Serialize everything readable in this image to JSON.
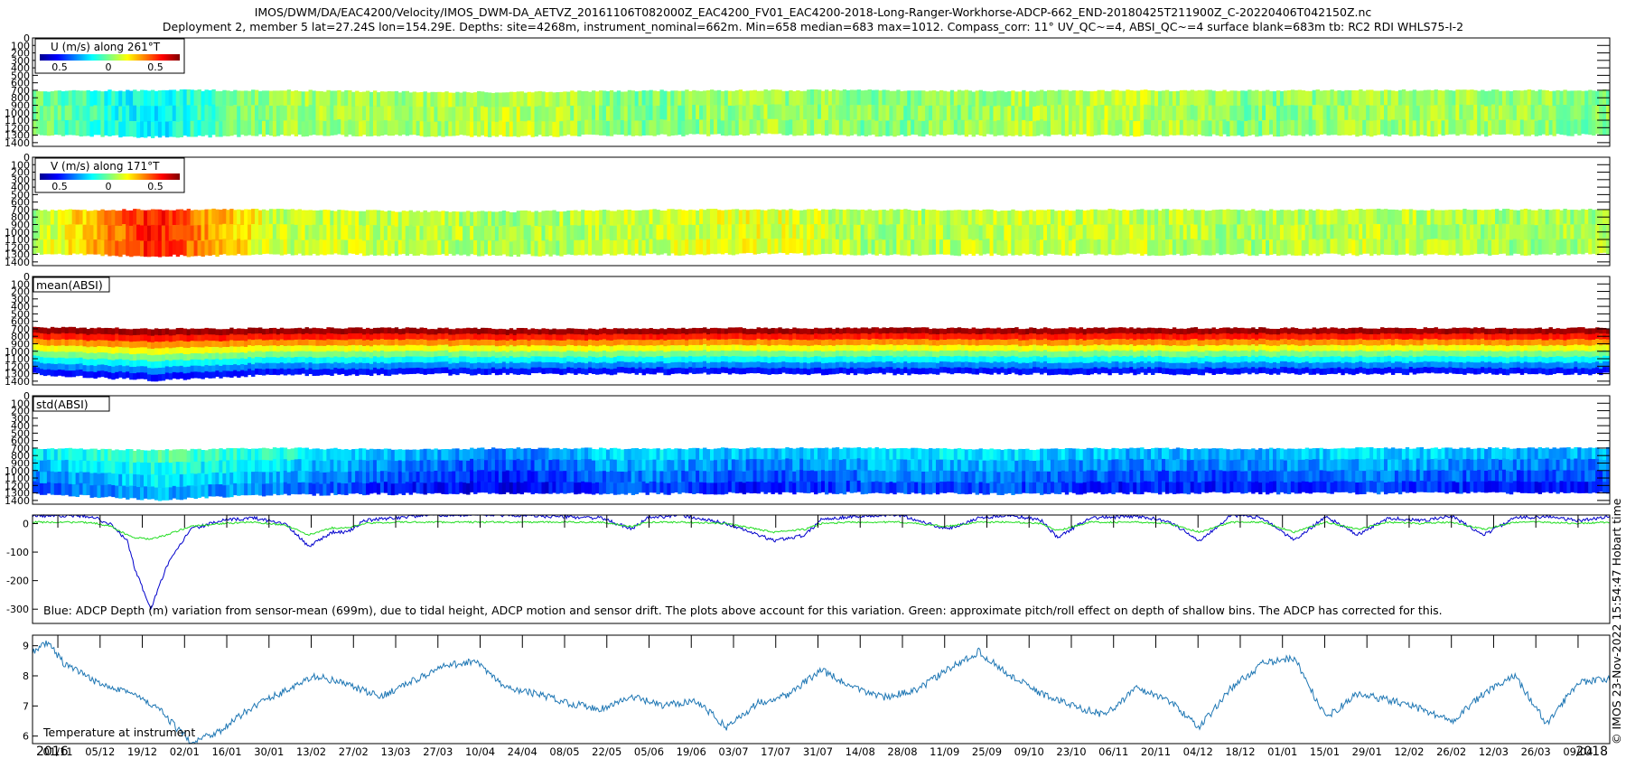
{
  "header": {
    "title": "IMOS/DWM/DA/EAC4200/Velocity/IMOS_DWM-DA_AETVZ_20161106T082000Z_EAC4200_FV01_EAC4200-2018-Long-Ranger-Workhorse-ADCP-662_END-20180425T211900Z_C-20220406T042150Z.nc",
    "subtitle": "Deployment 2, member 5 lat=27.24S lon=154.29E. Depths: site=4268m, instrument_nominal=662m. Min=658 median=683 max=1012. Compass_corr: 11° UV_QC~=4, ABSI_QC~=4 surface blank=683m tb: RC2 RDI WHLS75-I-2"
  },
  "copyright": "© IMOS 23-Nov-2022 15:54:47 Hobart time",
  "colors": {
    "depth_series": "#0000cc",
    "pitch_roll_series": "#22dd22",
    "temperature_series": "#1f77b4"
  },
  "chart_data": [
    {
      "type": "heatmap",
      "panel": "u_velocity",
      "legend_label": "U (m/s) along 261°T",
      "colorbar_ticks": [
        "0.5",
        "0",
        "0.5"
      ],
      "y_ticks": [
        "0",
        "100",
        "200",
        "300",
        "400",
        "500",
        "600",
        "700",
        "800",
        "900",
        "1000",
        "1100",
        "1200",
        "1300",
        "1400"
      ],
      "ylim": [
        0,
        1450
      ],
      "y_reversed": true,
      "data_top_depth": [
        710,
        700,
        700,
        720,
        725,
        705,
        700,
        700,
        710,
        700,
        705,
        700,
        700,
        700
      ],
      "data_bottom_depth": [
        1290,
        1320,
        1300,
        1300,
        1310,
        1300,
        1290,
        1300,
        1300,
        1300,
        1300,
        1300,
        1300,
        1290
      ],
      "colormap": "jet",
      "value_range": [
        -0.7,
        0.7
      ],
      "mean_value_by_time": [
        0.0,
        -0.2,
        0.05,
        0.05,
        0.1,
        0.0,
        0.05,
        0.0,
        0.05,
        0.1,
        0.0,
        0.05,
        0.05,
        0.0
      ]
    },
    {
      "type": "heatmap",
      "panel": "v_velocity",
      "legend_label": "V (m/s) along 171°T",
      "colorbar_ticks": [
        "0.5",
        "0",
        "0.5"
      ],
      "y_ticks": [
        "0",
        "100",
        "200",
        "300",
        "400",
        "500",
        "600",
        "700",
        "800",
        "900",
        "1000",
        "1100",
        "1200",
        "1300",
        "1400"
      ],
      "ylim": [
        0,
        1450
      ],
      "y_reversed": true,
      "data_top_depth": [
        710,
        700,
        700,
        720,
        725,
        705,
        700,
        700,
        710,
        700,
        705,
        700,
        700,
        700
      ],
      "data_bottom_depth": [
        1290,
        1320,
        1300,
        1300,
        1310,
        1300,
        1290,
        1300,
        1300,
        1300,
        1300,
        1300,
        1300,
        1290
      ],
      "colormap": "jet",
      "value_range": [
        -0.7,
        0.7
      ],
      "mean_value_by_time": [
        0.05,
        0.5,
        0.1,
        0.1,
        0.05,
        0.1,
        0.15,
        0.05,
        0.1,
        0.1,
        0.05,
        0.1,
        0.05,
        0.05
      ]
    },
    {
      "type": "heatmap",
      "panel": "mean_absi",
      "legend_label": "mean(ABSI)",
      "y_ticks": [
        "0",
        "100",
        "200",
        "300",
        "400",
        "500",
        "600",
        "700",
        "800",
        "900",
        "1000",
        "1100",
        "1200",
        "1300",
        "1400"
      ],
      "ylim": [
        0,
        1450
      ],
      "y_reversed": true,
      "data_top_depth": [
        680,
        700,
        690,
        690,
        700,
        695,
        690,
        690,
        690,
        690,
        690,
        690,
        690,
        690
      ],
      "data_bottom_depth": [
        1300,
        1390,
        1310,
        1310,
        1300,
        1300,
        1300,
        1300,
        1300,
        1300,
        1300,
        1300,
        1300,
        1300
      ],
      "colormap": "jet",
      "profile_note": "high at top of profile decreasing with depth"
    },
    {
      "type": "heatmap",
      "panel": "std_absi",
      "legend_label": "std(ABSI)",
      "y_ticks": [
        "0",
        "100",
        "200",
        "300",
        "400",
        "500",
        "600",
        "700",
        "800",
        "900",
        "1000",
        "1100",
        "1200",
        "1300",
        "1400"
      ],
      "ylim": [
        0,
        1450
      ],
      "y_reversed": true,
      "data_top_depth": [
        700,
        730,
        700,
        720,
        700,
        710,
        700,
        700,
        720,
        700,
        710,
        700,
        700,
        700
      ],
      "data_bottom_depth": [
        1300,
        1390,
        1320,
        1310,
        1300,
        1310,
        1300,
        1300,
        1310,
        1300,
        1300,
        1300,
        1300,
        1300
      ],
      "colormap": "jet",
      "mean_level_by_time": [
        0.35,
        0.45,
        0.4,
        0.3,
        0.25,
        0.35,
        0.3,
        0.35,
        0.35,
        0.3,
        0.3,
        0.35,
        0.3,
        0.3
      ]
    },
    {
      "type": "line",
      "panel": "depth_variation",
      "annotation": "Blue: ADCP Depth (m) variation from sensor-mean (699m), due to tidal height, ADCP motion and sensor drift. The plots above account for this variation. Green: approximate pitch/roll effect on depth of shallow bins. The ADCP has corrected for this.",
      "y_ticks": [
        "0",
        "-100",
        "-200",
        "-300"
      ],
      "y_tick_values": [
        0,
        -100,
        -200,
        -300
      ],
      "ylim": [
        -350,
        30
      ],
      "x": [
        0,
        0.02,
        0.038,
        0.05,
        0.06,
        0.065,
        0.075,
        0.085,
        0.1,
        0.12,
        0.14,
        0.16,
        0.175,
        0.19,
        0.2,
        0.21,
        0.23,
        0.25,
        0.27,
        0.3,
        0.33,
        0.36,
        0.38,
        0.39,
        0.41,
        0.44,
        0.47,
        0.49,
        0.5,
        0.52,
        0.55,
        0.58,
        0.6,
        0.62,
        0.64,
        0.65,
        0.67,
        0.7,
        0.72,
        0.74,
        0.76,
        0.78,
        0.8,
        0.82,
        0.84,
        0.86,
        0.88,
        0.9,
        0.92,
        0.94,
        0.96,
        0.98,
        1.0
      ],
      "series": [
        {
          "values": [
            28,
            28,
            25,
            -5,
            -60,
            -160,
            -300,
            -150,
            -20,
            10,
            20,
            0,
            -80,
            -30,
            -30,
            10,
            20,
            30,
            30,
            30,
            25,
            20,
            -20,
            20,
            30,
            0,
            -60,
            -40,
            15,
            25,
            30,
            -20,
            20,
            30,
            10,
            -50,
            20,
            25,
            10,
            -60,
            30,
            20,
            -60,
            25,
            -40,
            20,
            10,
            25,
            -40,
            20,
            25,
            10,
            25
          ]
        },
        {
          "values": [
            5,
            5,
            3,
            -10,
            -40,
            -50,
            -55,
            -40,
            -10,
            0,
            5,
            -5,
            -40,
            -15,
            -15,
            0,
            5,
            5,
            5,
            5,
            5,
            5,
            -10,
            5,
            5,
            0,
            -30,
            -20,
            0,
            5,
            5,
            -10,
            5,
            5,
            0,
            -25,
            5,
            5,
            0,
            -30,
            5,
            5,
            -30,
            5,
            -20,
            5,
            0,
            5,
            -20,
            5,
            5,
            0,
            5
          ]
        }
      ]
    },
    {
      "type": "line",
      "panel": "temperature",
      "annotation": "Temperature at instrument",
      "y_ticks": [
        "9",
        "8",
        "7",
        "6"
      ],
      "y_tick_values": [
        9,
        8,
        7,
        6
      ],
      "ylim": [
        5.75,
        9.35
      ],
      "x": [
        0,
        0.01,
        0.02,
        0.04,
        0.06,
        0.08,
        0.1,
        0.12,
        0.14,
        0.16,
        0.18,
        0.2,
        0.22,
        0.24,
        0.26,
        0.28,
        0.3,
        0.32,
        0.34,
        0.36,
        0.38,
        0.4,
        0.42,
        0.44,
        0.46,
        0.48,
        0.5,
        0.52,
        0.54,
        0.56,
        0.58,
        0.6,
        0.62,
        0.64,
        0.66,
        0.68,
        0.7,
        0.72,
        0.74,
        0.76,
        0.78,
        0.8,
        0.82,
        0.84,
        0.86,
        0.88,
        0.9,
        0.92,
        0.94,
        0.96,
        0.98,
        1.0
      ],
      "series": [
        {
          "values": [
            8.8,
            9.1,
            8.4,
            7.8,
            7.5,
            6.9,
            5.8,
            6.2,
            7.0,
            7.5,
            8.0,
            7.7,
            7.3,
            7.8,
            8.3,
            8.5,
            7.6,
            7.4,
            7.1,
            6.9,
            7.3,
            7.0,
            7.2,
            6.3,
            7.1,
            7.4,
            8.2,
            7.6,
            7.3,
            7.5,
            8.2,
            8.8,
            8.0,
            7.4,
            7.0,
            6.7,
            7.6,
            7.2,
            6.3,
            7.6,
            8.4,
            8.6,
            6.6,
            7.4,
            7.2,
            6.9,
            6.5,
            7.4,
            8.0,
            6.4,
            7.8,
            7.9
          ]
        }
      ]
    }
  ],
  "x_axis": {
    "labels": [
      "01/11",
      "05/12",
      "19/12",
      "02/01",
      "16/01",
      "30/01",
      "13/02",
      "27/02",
      "13/03",
      "27/03",
      "10/04",
      "24/04",
      "08/05",
      "22/05",
      "05/06",
      "19/06",
      "03/07",
      "17/07",
      "31/07",
      "14/08",
      "28/08",
      "11/09",
      "25/09",
      "09/10",
      "23/10",
      "06/11",
      "20/11",
      "04/12",
      "18/12",
      "01/01",
      "15/01",
      "29/01",
      "12/02",
      "26/02",
      "12/03",
      "26/03",
      "09/04"
    ],
    "year_start": "2016",
    "year_end": "2018"
  }
}
